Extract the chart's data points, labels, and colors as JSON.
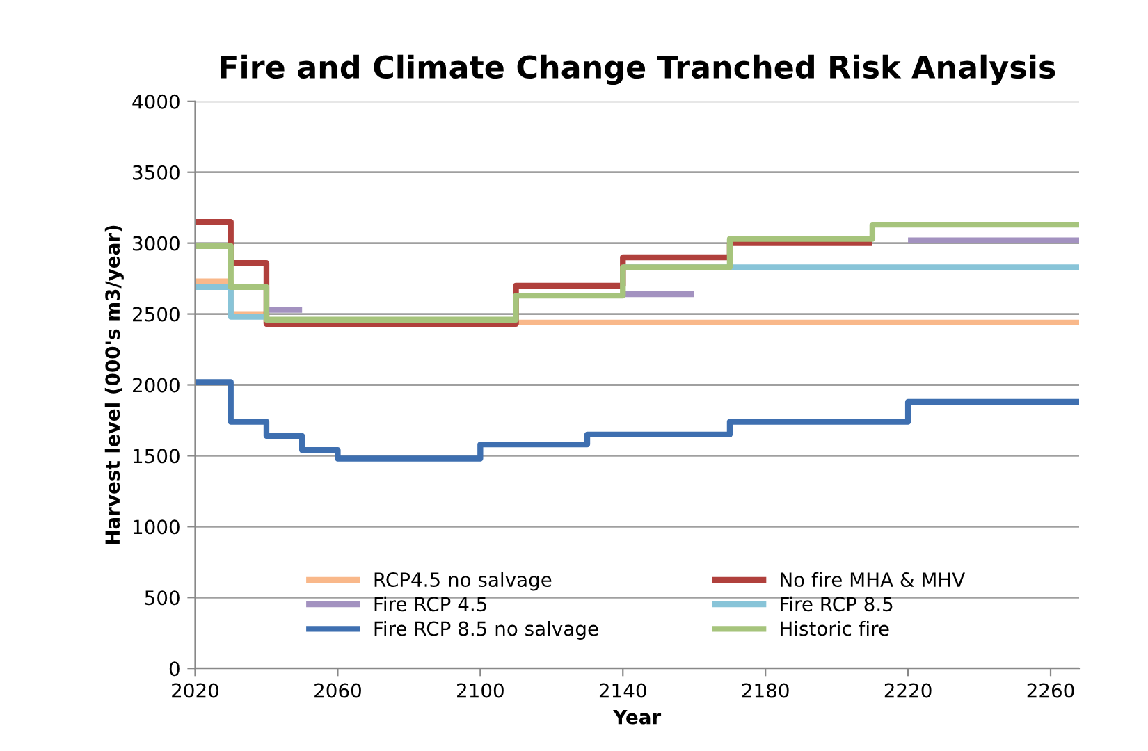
{
  "chart_data": {
    "type": "step",
    "title": "Fire and Climate Change Tranched Risk Analysis",
    "xlabel": "Year",
    "ylabel": "Harvest level (000's m3/year)",
    "xlim": [
      2020,
      2268
    ],
    "xticks": [
      2020,
      2060,
      2100,
      2140,
      2180,
      2220,
      2260
    ],
    "ylim": [
      0,
      4000
    ],
    "yticks": [
      0,
      500,
      1000,
      1500,
      2000,
      2500,
      3000,
      3500,
      4000
    ],
    "grid": "y",
    "legend": "bottom",
    "line_style": "solid",
    "marker": "none",
    "series": [
      {
        "name": "RCP4.5 no salvage",
        "color": "#f9b88a",
        "x": [
          2020,
          2030,
          2040,
          2268
        ],
        "values": [
          2730,
          2500,
          2440,
          2440
        ]
      },
      {
        "name": "No fire MHA & MHV",
        "color": "#b0403c",
        "x": [
          2020,
          2030,
          2040,
          2110,
          2140,
          2170,
          2210
        ],
        "values": [
          3150,
          2860,
          2430,
          2700,
          2900,
          3000,
          3000
        ]
      },
      {
        "name": "Fire RCP 4.5",
        "color": "#a392c0",
        "x": [
          2040,
          2050,
          2140,
          2160,
          2220,
          2268
        ],
        "values": [
          2530,
          null,
          2640,
          null,
          3020,
          3020
        ]
      },
      {
        "name": "Fire RCP 8.5",
        "color": "#88c4d8",
        "x": [
          2020,
          2030,
          2040,
          2140,
          2268
        ],
        "values": [
          2690,
          2480,
          null,
          2830,
          2830
        ]
      },
      {
        "name": "Fire RCP 8.5 no salvage",
        "color": "#3e6fb0",
        "x": [
          2020,
          2030,
          2040,
          2050,
          2060,
          2100,
          2130,
          2170,
          2220,
          2268
        ],
        "values": [
          2020,
          1740,
          1640,
          1540,
          1480,
          1580,
          1650,
          1740,
          1880,
          1880
        ]
      },
      {
        "name": "Historic fire",
        "color": "#a6c47c",
        "x": [
          2020,
          2030,
          2040,
          2110,
          2140,
          2170,
          2210,
          2268
        ],
        "values": [
          2980,
          2690,
          2460,
          2630,
          2830,
          3030,
          3130,
          3130
        ]
      }
    ]
  }
}
